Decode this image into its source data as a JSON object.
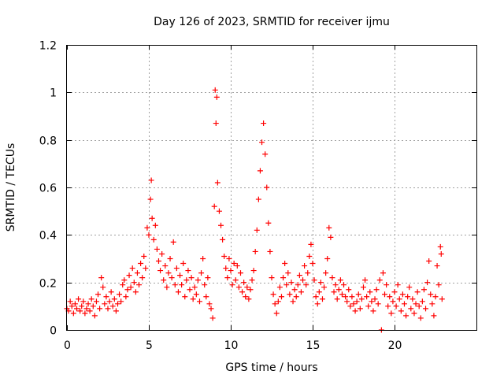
{
  "chart_data": {
    "type": "scatter",
    "title": "Day 126 of 2023, SRMTID for receiver ijmu",
    "xlabel": "GPS time / hours",
    "ylabel": "SRMTID / TECUs",
    "xlim": [
      0,
      25
    ],
    "ylim": [
      0,
      1.2
    ],
    "x_ticks": [
      0,
      5,
      10,
      15,
      20
    ],
    "x_tick_labels": [
      "0",
      "5",
      "10",
      "15",
      "20"
    ],
    "y_ticks": [
      0,
      0.2,
      0.4,
      0.6,
      0.8,
      1,
      1.2
    ],
    "y_tick_labels": [
      "0",
      "0.2",
      "0.4",
      "0.6",
      "0.8",
      "1",
      "1.2"
    ],
    "grid": true,
    "marker": "plus",
    "color": "#ff0000",
    "series": [
      {
        "name": "SRMTID",
        "points": [
          [
            0.0,
            0.09
          ],
          [
            0.1,
            0.08
          ],
          [
            0.2,
            0.12
          ],
          [
            0.3,
            0.1
          ],
          [
            0.4,
            0.07
          ],
          [
            0.5,
            0.11
          ],
          [
            0.6,
            0.09
          ],
          [
            0.7,
            0.13
          ],
          [
            0.8,
            0.08
          ],
          [
            0.9,
            0.1
          ],
          [
            1.0,
            0.12
          ],
          [
            1.1,
            0.07
          ],
          [
            1.2,
            0.09
          ],
          [
            1.3,
            0.11
          ],
          [
            1.4,
            0.08
          ],
          [
            1.5,
            0.13
          ],
          [
            1.6,
            0.1
          ],
          [
            1.7,
            0.06
          ],
          [
            1.8,
            0.12
          ],
          [
            1.9,
            0.15
          ],
          [
            2.0,
            0.09
          ],
          [
            2.1,
            0.22
          ],
          [
            2.2,
            0.18
          ],
          [
            2.3,
            0.11
          ],
          [
            2.4,
            0.14
          ],
          [
            2.5,
            0.09
          ],
          [
            2.6,
            0.12
          ],
          [
            2.7,
            0.16
          ],
          [
            2.8,
            0.1
          ],
          [
            2.9,
            0.13
          ],
          [
            3.0,
            0.08
          ],
          [
            3.1,
            0.11
          ],
          [
            3.2,
            0.15
          ],
          [
            3.3,
            0.12
          ],
          [
            3.4,
            0.19
          ],
          [
            3.5,
            0.21
          ],
          [
            3.6,
            0.14
          ],
          [
            3.7,
            0.17
          ],
          [
            3.8,
            0.23
          ],
          [
            3.9,
            0.18
          ],
          [
            4.0,
            0.26
          ],
          [
            4.1,
            0.2
          ],
          [
            4.2,
            0.16
          ],
          [
            4.3,
            0.24
          ],
          [
            4.4,
            0.19
          ],
          [
            4.5,
            0.28
          ],
          [
            4.6,
            0.22
          ],
          [
            4.7,
            0.31
          ],
          [
            4.8,
            0.26
          ],
          [
            4.9,
            0.43
          ],
          [
            5.0,
            0.4
          ],
          [
            5.1,
            0.55
          ],
          [
            5.15,
            0.63
          ],
          [
            5.2,
            0.47
          ],
          [
            5.3,
            0.38
          ],
          [
            5.4,
            0.44
          ],
          [
            5.5,
            0.34
          ],
          [
            5.6,
            0.29
          ],
          [
            5.7,
            0.25
          ],
          [
            5.8,
            0.32
          ],
          [
            5.9,
            0.21
          ],
          [
            6.0,
            0.27
          ],
          [
            6.1,
            0.18
          ],
          [
            6.2,
            0.24
          ],
          [
            6.3,
            0.3
          ],
          [
            6.4,
            0.22
          ],
          [
            6.5,
            0.37
          ],
          [
            6.6,
            0.19
          ],
          [
            6.7,
            0.26
          ],
          [
            6.8,
            0.16
          ],
          [
            6.9,
            0.23
          ],
          [
            7.0,
            0.19
          ],
          [
            7.1,
            0.28
          ],
          [
            7.2,
            0.14
          ],
          [
            7.3,
            0.21
          ],
          [
            7.4,
            0.25
          ],
          [
            7.5,
            0.17
          ],
          [
            7.6,
            0.22
          ],
          [
            7.7,
            0.13
          ],
          [
            7.8,
            0.18
          ],
          [
            7.9,
            0.15
          ],
          [
            8.0,
            0.21
          ],
          [
            8.1,
            0.12
          ],
          [
            8.2,
            0.24
          ],
          [
            8.3,
            0.3
          ],
          [
            8.4,
            0.19
          ],
          [
            8.5,
            0.14
          ],
          [
            8.6,
            0.22
          ],
          [
            8.7,
            0.11
          ],
          [
            8.8,
            0.09
          ],
          [
            8.9,
            0.05
          ],
          [
            9.0,
            0.52
          ],
          [
            9.05,
            1.01
          ],
          [
            9.1,
            0.87
          ],
          [
            9.15,
            0.98
          ],
          [
            9.2,
            0.62
          ],
          [
            9.3,
            0.5
          ],
          [
            9.4,
            0.44
          ],
          [
            9.5,
            0.38
          ],
          [
            9.6,
            0.31
          ],
          [
            9.7,
            0.26
          ],
          [
            9.8,
            0.22
          ],
          [
            9.9,
            0.3
          ],
          [
            10.0,
            0.25
          ],
          [
            10.1,
            0.19
          ],
          [
            10.2,
            0.28
          ],
          [
            10.3,
            0.21
          ],
          [
            10.4,
            0.27
          ],
          [
            10.5,
            0.18
          ],
          [
            10.6,
            0.24
          ],
          [
            10.7,
            0.16
          ],
          [
            10.8,
            0.2
          ],
          [
            10.9,
            0.14
          ],
          [
            11.0,
            0.18
          ],
          [
            11.1,
            0.13
          ],
          [
            11.2,
            0.17
          ],
          [
            11.3,
            0.21
          ],
          [
            11.4,
            0.25
          ],
          [
            11.5,
            0.33
          ],
          [
            11.6,
            0.42
          ],
          [
            11.7,
            0.55
          ],
          [
            11.8,
            0.67
          ],
          [
            11.9,
            0.79
          ],
          [
            12.0,
            0.87
          ],
          [
            12.1,
            0.74
          ],
          [
            12.2,
            0.6
          ],
          [
            12.3,
            0.45
          ],
          [
            12.4,
            0.33
          ],
          [
            12.5,
            0.22
          ],
          [
            12.6,
            0.15
          ],
          [
            12.7,
            0.11
          ],
          [
            12.8,
            0.07
          ],
          [
            12.9,
            0.12
          ],
          [
            13.0,
            0.18
          ],
          [
            13.1,
            0.14
          ],
          [
            13.2,
            0.22
          ],
          [
            13.3,
            0.28
          ],
          [
            13.4,
            0.19
          ],
          [
            13.5,
            0.24
          ],
          [
            13.6,
            0.15
          ],
          [
            13.7,
            0.2
          ],
          [
            13.8,
            0.12
          ],
          [
            13.9,
            0.17
          ],
          [
            14.0,
            0.14
          ],
          [
            14.1,
            0.19
          ],
          [
            14.2,
            0.23
          ],
          [
            14.3,
            0.16
          ],
          [
            14.4,
            0.21
          ],
          [
            14.5,
            0.27
          ],
          [
            14.6,
            0.19
          ],
          [
            14.7,
            0.24
          ],
          [
            14.8,
            0.31
          ],
          [
            14.9,
            0.36
          ],
          [
            15.0,
            0.28
          ],
          [
            15.1,
            0.21
          ],
          [
            15.2,
            0.14
          ],
          [
            15.3,
            0.11
          ],
          [
            15.4,
            0.16
          ],
          [
            15.5,
            0.2
          ],
          [
            15.6,
            0.13
          ],
          [
            15.7,
            0.18
          ],
          [
            15.8,
            0.24
          ],
          [
            15.9,
            0.3
          ],
          [
            16.0,
            0.43
          ],
          [
            16.1,
            0.39
          ],
          [
            16.2,
            0.22
          ],
          [
            16.3,
            0.16
          ],
          [
            16.4,
            0.19
          ],
          [
            16.5,
            0.13
          ],
          [
            16.6,
            0.17
          ],
          [
            16.7,
            0.21
          ],
          [
            16.8,
            0.15
          ],
          [
            16.9,
            0.19
          ],
          [
            17.0,
            0.14
          ],
          [
            17.1,
            0.12
          ],
          [
            17.2,
            0.17
          ],
          [
            17.3,
            0.1
          ],
          [
            17.4,
            0.14
          ],
          [
            17.5,
            0.11
          ],
          [
            17.6,
            0.08
          ],
          [
            17.7,
            0.12
          ],
          [
            17.8,
            0.15
          ],
          [
            17.9,
            0.09
          ],
          [
            18.0,
            0.13
          ],
          [
            18.1,
            0.18
          ],
          [
            18.2,
            0.21
          ],
          [
            18.3,
            0.14
          ],
          [
            18.4,
            0.1
          ],
          [
            18.5,
            0.16
          ],
          [
            18.6,
            0.12
          ],
          [
            18.7,
            0.08
          ],
          [
            18.8,
            0.13
          ],
          [
            18.9,
            0.17
          ],
          [
            19.0,
            0.11
          ],
          [
            19.1,
            0.21
          ],
          [
            19.2,
            0.0
          ],
          [
            19.3,
            0.24
          ],
          [
            19.4,
            0.15
          ],
          [
            19.5,
            0.19
          ],
          [
            19.6,
            0.1
          ],
          [
            19.7,
            0.14
          ],
          [
            19.8,
            0.07
          ],
          [
            19.9,
            0.12
          ],
          [
            20.0,
            0.16
          ],
          [
            20.1,
            0.1
          ],
          [
            20.2,
            0.19
          ],
          [
            20.3,
            0.13
          ],
          [
            20.4,
            0.08
          ],
          [
            20.5,
            0.15
          ],
          [
            20.6,
            0.11
          ],
          [
            20.7,
            0.06
          ],
          [
            20.8,
            0.14
          ],
          [
            20.9,
            0.18
          ],
          [
            21.0,
            0.09
          ],
          [
            21.1,
            0.13
          ],
          [
            21.2,
            0.07
          ],
          [
            21.3,
            0.11
          ],
          [
            21.4,
            0.16
          ],
          [
            21.5,
            0.1
          ],
          [
            21.6,
            0.05
          ],
          [
            21.7,
            0.12
          ],
          [
            21.8,
            0.17
          ],
          [
            21.9,
            0.09
          ],
          [
            22.0,
            0.2
          ],
          [
            22.1,
            0.29
          ],
          [
            22.2,
            0.15
          ],
          [
            22.3,
            0.11
          ],
          [
            22.4,
            0.06
          ],
          [
            22.5,
            0.14
          ],
          [
            22.6,
            0.27
          ],
          [
            22.7,
            0.19
          ],
          [
            22.8,
            0.35
          ],
          [
            22.85,
            0.32
          ],
          [
            22.9,
            0.13
          ]
        ]
      }
    ]
  }
}
